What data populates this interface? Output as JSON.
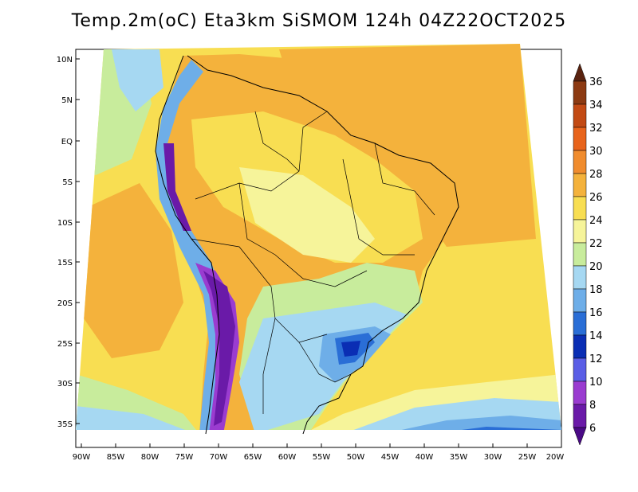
{
  "title": "Temp.2m(oC) Eta3km SiSMOM 124h 04Z22OCT2025",
  "map": {
    "lat_labels": [
      "10N",
      "5N",
      "EQ",
      "5S",
      "10S",
      "15S",
      "20S",
      "25S",
      "30S",
      "35S"
    ],
    "lon_labels": [
      "90W",
      "85W",
      "80W",
      "75W",
      "70W",
      "65W",
      "60W",
      "55W",
      "50W",
      "45W",
      "40W",
      "35W",
      "30W",
      "25W",
      "20W"
    ]
  },
  "colorbar": {
    "unit": "oC",
    "labels": [
      "36",
      "34",
      "32",
      "30",
      "28",
      "26",
      "24",
      "22",
      "20",
      "18",
      "16",
      "14",
      "12",
      "10",
      "8",
      "6"
    ],
    "colors": [
      "#5a2310",
      "#8c3a12",
      "#c24a14",
      "#e8641c",
      "#f08c2e",
      "#f4b23c",
      "#f8de52",
      "#f6f49a",
      "#c8ec9c",
      "#a6d8f2",
      "#6eaee8",
      "#2a6ed6",
      "#0a2eb4",
      "#5a5ee6",
      "#9a3cd0",
      "#6a1aa8",
      "#4a0a86"
    ]
  }
}
